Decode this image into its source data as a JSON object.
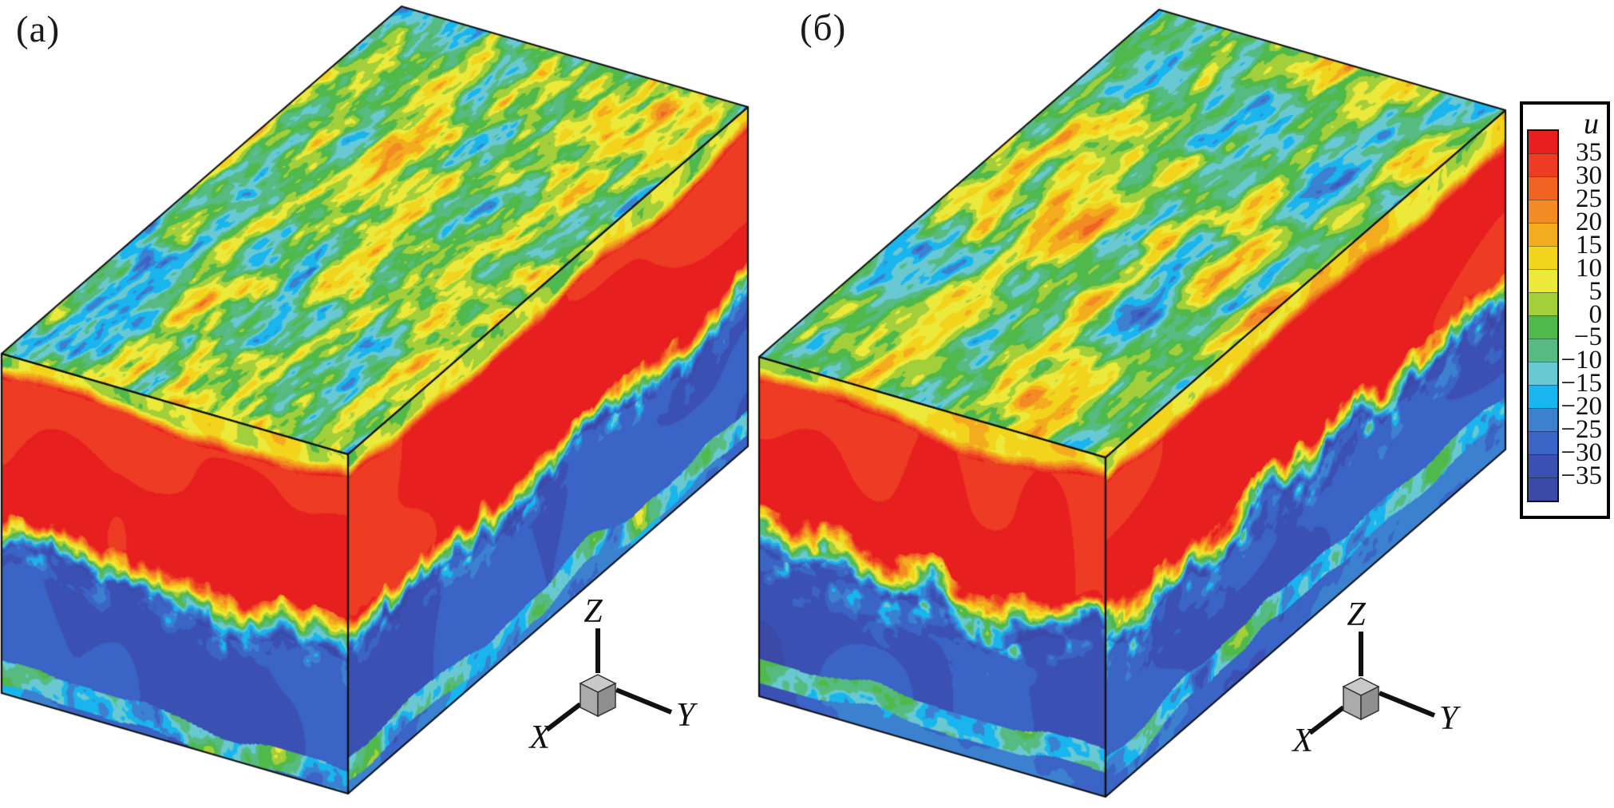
{
  "figure": {
    "panels": [
      {
        "label": "(а)"
      },
      {
        "label": "(б)"
      }
    ],
    "axes": {
      "x": "X",
      "y": "Y",
      "z": "Z"
    }
  },
  "legend": {
    "title": "u",
    "levels": [
      "35",
      "30",
      "25",
      "20",
      "15",
      "10",
      "5",
      "0",
      "−5",
      "−10",
      "−15",
      "−20",
      "−25",
      "−30",
      "−35"
    ],
    "band_colors": [
      "#e71f1f",
      "#ee3b24",
      "#f06323",
      "#f28b23",
      "#f4ac1f",
      "#f2d41d",
      "#ece93b",
      "#a3cf3a",
      "#4fb94b",
      "#56bb80",
      "#69c9d2",
      "#19b5ee",
      "#3c80d0",
      "#3a64c5",
      "#3a51b3",
      "#3b49a7"
    ]
  },
  "chart_data": {
    "type": "heatmap",
    "title": "",
    "legend_title": "u",
    "levels": [
      35,
      30,
      25,
      20,
      15,
      10,
      5,
      0,
      -5,
      -10,
      -15,
      -20,
      -25,
      -30,
      -35
    ],
    "band_colors": [
      "#e71f1f",
      "#ee3b24",
      "#f06323",
      "#f28b23",
      "#f4ac1f",
      "#f2d41d",
      "#ece93b",
      "#a3cf3a",
      "#4fb94b",
      "#56bb80",
      "#69c9d2",
      "#19b5ee",
      "#3c80d0",
      "#3a64c5",
      "#3a51b3",
      "#3b49a7"
    ],
    "axes": {
      "x": "X",
      "y": "Y",
      "z": "Z"
    },
    "panels": [
      {
        "label": "(а)",
        "view": "3D box, contour flood of velocity u on top, front and side faces",
        "structure": [
          "top face: mottled turbulent field, mostly u ≈ −5…5 (green) with patches to ±30",
          "side faces, below top edge: thin turbulent green/yellow strip (u ≈ 0…15)",
          "upper layer: u > 30 (red), down to about mid-height",
          "middle: turbulent mixing interface with yellow/green/cyan filaments",
          "lower layer: u < −25 (blue)",
          "near bottom edge: turbulent green/cyan strip (u ≈ −20…0)"
        ]
      },
      {
        "label": "(б)",
        "view": "3D box, contour flood of velocity u on top, front and side faces",
        "structure": [
          "top face: coarser mottled field with larger yellow/orange/red blobs",
          "side faces, below top edge: thicker turbulent yellow/green strip",
          "upper layer: u > 30 (red)",
          "middle: strongly convoluted mixing interface with mushroom-like green/cyan intrusions",
          "lower layer: u < −25 (blue)",
          "near bottom edge: wavy turbulent green/cyan strip"
        ]
      }
    ]
  }
}
